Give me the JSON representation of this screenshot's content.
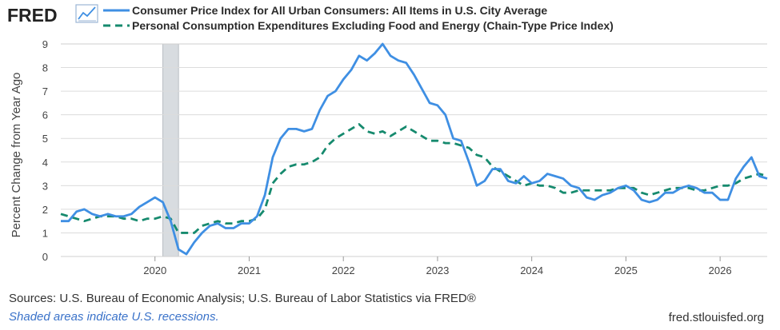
{
  "logo": {
    "text": "FRED"
  },
  "colors": {
    "cpi": "#3f8fe3",
    "pce": "#168a6e",
    "recession": "#d8dce0",
    "grid": "#dcdcdc",
    "plot_border": "#cfcfcf"
  },
  "footer": {
    "source": "Sources: U.S. Bureau of Economic Analysis; U.S. Bureau of Labor Statistics via FRED®",
    "note": "Shaded areas indicate U.S. recessions.",
    "site": "fred.stlouisfed.org"
  },
  "chart_data": {
    "type": "line",
    "title": "",
    "xlabel": "",
    "ylabel": "Percent Change from Year Ago",
    "xlim": [
      "2019-01",
      "2026-07"
    ],
    "ylim": [
      0,
      9
    ],
    "yticks": [
      0,
      1,
      2,
      3,
      4,
      5,
      6,
      7,
      8,
      9
    ],
    "xticks": [
      "2020",
      "2021",
      "2022",
      "2023",
      "2024",
      "2025",
      "2026"
    ],
    "grid": true,
    "legend_position": "top",
    "recessions": [
      {
        "start": "2020-02",
        "end": "2020-04"
      }
    ],
    "series": [
      {
        "name": "Consumer Price Index for All Urban Consumers: All Items in U.S. City Average",
        "style": "solid",
        "points": [
          [
            "2019-01",
            1.5
          ],
          [
            "2019-02",
            1.5
          ],
          [
            "2019-03",
            1.9
          ],
          [
            "2019-04",
            2.0
          ],
          [
            "2019-05",
            1.8
          ],
          [
            "2019-06",
            1.7
          ],
          [
            "2019-07",
            1.8
          ],
          [
            "2019-08",
            1.7
          ],
          [
            "2019-09",
            1.7
          ],
          [
            "2019-10",
            1.8
          ],
          [
            "2019-11",
            2.1
          ],
          [
            "2019-12",
            2.3
          ],
          [
            "2020-01",
            2.5
          ],
          [
            "2020-02",
            2.3
          ],
          [
            "2020-03",
            1.5
          ],
          [
            "2020-04",
            0.3
          ],
          [
            "2020-05",
            0.1
          ],
          [
            "2020-06",
            0.6
          ],
          [
            "2020-07",
            1.0
          ],
          [
            "2020-08",
            1.3
          ],
          [
            "2020-09",
            1.4
          ],
          [
            "2020-10",
            1.2
          ],
          [
            "2020-11",
            1.2
          ],
          [
            "2020-12",
            1.4
          ],
          [
            "2021-01",
            1.4
          ],
          [
            "2021-02",
            1.7
          ],
          [
            "2021-03",
            2.6
          ],
          [
            "2021-04",
            4.2
          ],
          [
            "2021-05",
            5.0
          ],
          [
            "2021-06",
            5.4
          ],
          [
            "2021-07",
            5.4
          ],
          [
            "2021-08",
            5.3
          ],
          [
            "2021-09",
            5.4
          ],
          [
            "2021-10",
            6.2
          ],
          [
            "2021-11",
            6.8
          ],
          [
            "2021-12",
            7.0
          ],
          [
            "2022-01",
            7.5
          ],
          [
            "2022-02",
            7.9
          ],
          [
            "2022-03",
            8.5
          ],
          [
            "2022-04",
            8.3
          ],
          [
            "2022-05",
            8.6
          ],
          [
            "2022-06",
            9.0
          ],
          [
            "2022-07",
            8.5
          ],
          [
            "2022-08",
            8.3
          ],
          [
            "2022-09",
            8.2
          ],
          [
            "2022-10",
            7.7
          ],
          [
            "2022-11",
            7.1
          ],
          [
            "2022-12",
            6.5
          ],
          [
            "2023-01",
            6.4
          ],
          [
            "2023-02",
            6.0
          ],
          [
            "2023-03",
            5.0
          ],
          [
            "2023-04",
            4.9
          ],
          [
            "2023-05",
            4.0
          ],
          [
            "2023-06",
            3.0
          ],
          [
            "2023-07",
            3.2
          ],
          [
            "2023-08",
            3.7
          ],
          [
            "2023-09",
            3.7
          ],
          [
            "2023-10",
            3.2
          ],
          [
            "2023-11",
            3.1
          ],
          [
            "2023-12",
            3.4
          ],
          [
            "2024-01",
            3.1
          ],
          [
            "2024-02",
            3.2
          ],
          [
            "2024-03",
            3.5
          ],
          [
            "2024-04",
            3.4
          ],
          [
            "2024-05",
            3.3
          ],
          [
            "2024-06",
            3.0
          ],
          [
            "2024-07",
            2.9
          ],
          [
            "2024-08",
            2.5
          ],
          [
            "2024-09",
            2.4
          ],
          [
            "2024-10",
            2.6
          ],
          [
            "2024-11",
            2.7
          ],
          [
            "2024-12",
            2.9
          ],
          [
            "2025-01",
            3.0
          ],
          [
            "2025-02",
            2.8
          ],
          [
            "2025-03",
            2.4
          ],
          [
            "2025-04",
            2.3
          ],
          [
            "2025-05",
            2.4
          ],
          [
            "2025-06",
            2.7
          ],
          [
            "2025-07",
            2.7
          ],
          [
            "2025-08",
            2.9
          ],
          [
            "2025-09",
            3.0
          ],
          [
            "2025-10",
            2.9
          ],
          [
            "2025-11",
            2.7
          ],
          [
            "2025-12",
            2.7
          ],
          [
            "2026-01",
            2.4
          ],
          [
            "2026-02",
            2.4
          ],
          [
            "2026-03",
            3.3
          ],
          [
            "2026-04",
            3.8
          ],
          [
            "2026-05",
            4.2
          ],
          [
            "2026-06",
            3.4
          ],
          [
            "2026-07",
            3.3
          ]
        ]
      },
      {
        "name": "Personal Consumption Expenditures Excluding Food and Energy (Chain-Type Price Index)",
        "style": "dashed",
        "points": [
          [
            "2019-01",
            1.8
          ],
          [
            "2019-02",
            1.7
          ],
          [
            "2019-03",
            1.6
          ],
          [
            "2019-04",
            1.5
          ],
          [
            "2019-05",
            1.6
          ],
          [
            "2019-06",
            1.7
          ],
          [
            "2019-07",
            1.7
          ],
          [
            "2019-08",
            1.7
          ],
          [
            "2019-09",
            1.6
          ],
          [
            "2019-10",
            1.6
          ],
          [
            "2019-11",
            1.5
          ],
          [
            "2019-12",
            1.6
          ],
          [
            "2020-01",
            1.6
          ],
          [
            "2020-02",
            1.7
          ],
          [
            "2020-03",
            1.6
          ],
          [
            "2020-04",
            1.0
          ],
          [
            "2020-05",
            1.0
          ],
          [
            "2020-06",
            1.0
          ],
          [
            "2020-07",
            1.3
          ],
          [
            "2020-08",
            1.4
          ],
          [
            "2020-09",
            1.5
          ],
          [
            "2020-10",
            1.4
          ],
          [
            "2020-11",
            1.4
          ],
          [
            "2020-12",
            1.5
          ],
          [
            "2021-01",
            1.5
          ],
          [
            "2021-02",
            1.6
          ],
          [
            "2021-03",
            2.0
          ],
          [
            "2021-04",
            3.1
          ],
          [
            "2021-05",
            3.5
          ],
          [
            "2021-06",
            3.8
          ],
          [
            "2021-07",
            3.9
          ],
          [
            "2021-08",
            3.9
          ],
          [
            "2021-09",
            4.0
          ],
          [
            "2021-10",
            4.2
          ],
          [
            "2021-11",
            4.7
          ],
          [
            "2021-12",
            5.0
          ],
          [
            "2022-01",
            5.2
          ],
          [
            "2022-02",
            5.4
          ],
          [
            "2022-03",
            5.6
          ],
          [
            "2022-04",
            5.3
          ],
          [
            "2022-05",
            5.2
          ],
          [
            "2022-06",
            5.3
          ],
          [
            "2022-07",
            5.1
          ],
          [
            "2022-08",
            5.3
          ],
          [
            "2022-09",
            5.5
          ],
          [
            "2022-10",
            5.3
          ],
          [
            "2022-11",
            5.1
          ],
          [
            "2022-12",
            4.9
          ],
          [
            "2023-01",
            4.9
          ],
          [
            "2023-02",
            4.8
          ],
          [
            "2023-03",
            4.8
          ],
          [
            "2023-04",
            4.7
          ],
          [
            "2023-05",
            4.6
          ],
          [
            "2023-06",
            4.3
          ],
          [
            "2023-07",
            4.2
          ],
          [
            "2023-08",
            3.8
          ],
          [
            "2023-09",
            3.6
          ],
          [
            "2023-10",
            3.4
          ],
          [
            "2023-11",
            3.2
          ],
          [
            "2023-12",
            3.0
          ],
          [
            "2024-01",
            3.1
          ],
          [
            "2024-02",
            3.0
          ],
          [
            "2024-03",
            3.0
          ],
          [
            "2024-04",
            2.9
          ],
          [
            "2024-05",
            2.7
          ],
          [
            "2024-06",
            2.7
          ],
          [
            "2024-07",
            2.8
          ],
          [
            "2024-08",
            2.8
          ],
          [
            "2024-09",
            2.8
          ],
          [
            "2024-10",
            2.8
          ],
          [
            "2024-11",
            2.8
          ],
          [
            "2024-12",
            2.9
          ],
          [
            "2025-01",
            2.9
          ],
          [
            "2025-02",
            2.9
          ],
          [
            "2025-03",
            2.7
          ],
          [
            "2025-04",
            2.6
          ],
          [
            "2025-05",
            2.7
          ],
          [
            "2025-06",
            2.8
          ],
          [
            "2025-07",
            2.9
          ],
          [
            "2025-08",
            2.9
          ],
          [
            "2025-09",
            2.9
          ],
          [
            "2025-10",
            2.8
          ],
          [
            "2025-11",
            2.8
          ],
          [
            "2025-12",
            2.9
          ],
          [
            "2026-01",
            3.0
          ],
          [
            "2026-02",
            3.0
          ],
          [
            "2026-03",
            3.1
          ],
          [
            "2026-04",
            3.3
          ],
          [
            "2026-05",
            3.4
          ],
          [
            "2026-06",
            3.5
          ],
          [
            "2026-07",
            3.4
          ]
        ]
      }
    ]
  }
}
